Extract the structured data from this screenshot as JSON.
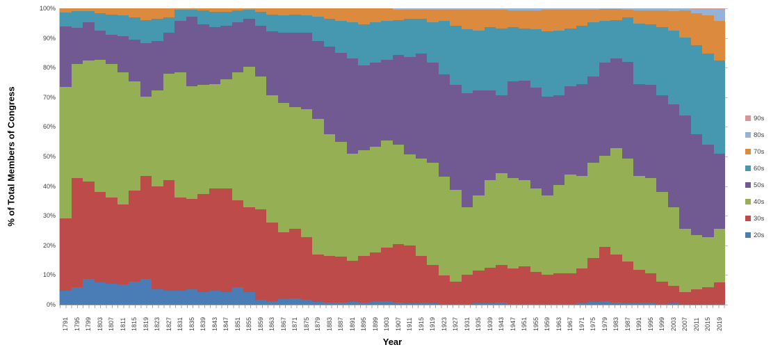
{
  "legend": {
    "position": "right",
    "items": [
      {
        "label": "90s",
        "color": "#D99694"
      },
      {
        "label": "80s",
        "color": "#95B3D7"
      },
      {
        "label": "70s",
        "color": "#DB8A3E"
      },
      {
        "label": "60s",
        "color": "#4698B0"
      },
      {
        "label": "50s",
        "color": "#715A92"
      },
      {
        "label": "40s",
        "color": "#94AF54"
      },
      {
        "label": "30s",
        "color": "#BC4B49"
      },
      {
        "label": "20s",
        "color": "#4A7CB5"
      }
    ]
  },
  "chart_data": {
    "type": "bar",
    "stacking": "percent",
    "title": "",
    "xlabel": "Year",
    "ylabel": "% of Total Members of Congress",
    "ylim": [
      0,
      100
    ],
    "grid": false,
    "legend_position": "right",
    "y_tick_labels": [
      "0%",
      "10%",
      "20%",
      "30%",
      "40%",
      "50%",
      "60%",
      "70%",
      "80%",
      "90%",
      "100%"
    ],
    "categories": [
      1791,
      1795,
      1799,
      1803,
      1807,
      1811,
      1815,
      1819,
      1823,
      1827,
      1831,
      1835,
      1839,
      1843,
      1847,
      1851,
      1855,
      1859,
      1863,
      1867,
      1871,
      1875,
      1879,
      1883,
      1887,
      1891,
      1895,
      1899,
      1903,
      1907,
      1911,
      1915,
      1919,
      1923,
      1927,
      1931,
      1935,
      1939,
      1943,
      1947,
      1951,
      1955,
      1959,
      1963,
      1967,
      1971,
      1975,
      1979,
      1983,
      1987,
      1991,
      1995,
      1999,
      2003,
      2007,
      2011,
      2015,
      2019
    ],
    "series": [
      {
        "name": "20s",
        "color": "#4A7CB5",
        "values": [
          4.8,
          5.9,
          8.6,
          7.5,
          7.1,
          6.7,
          7.8,
          8.6,
          5.1,
          4.7,
          4.7,
          5.1,
          4.3,
          4.7,
          4.3,
          5.9,
          4.3,
          1.6,
          1.2,
          1.8,
          2.0,
          1.6,
          0.9,
          0.7,
          0.7,
          1.0,
          0.8,
          1.2,
          1.2,
          0.8,
          0.4,
          0.4,
          0.4,
          0.2,
          0.2,
          0.2,
          0.4,
          0.4,
          0.6,
          0.2,
          0.2,
          0.2,
          0.2,
          0.2,
          0.2,
          0.4,
          0.9,
          1.2,
          0.8,
          0.4,
          0.4,
          0.5,
          0.2,
          0.5,
          0.1,
          0.1,
          0.1,
          0.2
        ]
      },
      {
        "name": "30s",
        "color": "#BC4B49",
        "values": [
          24.4,
          36.8,
          33.0,
          30.5,
          29.0,
          27.0,
          30.6,
          34.9,
          34.9,
          37.3,
          31.4,
          30.6,
          33.0,
          34.5,
          34.9,
          29.4,
          28.6,
          30.6,
          26.6,
          22.7,
          23.5,
          21.1,
          16.0,
          15.8,
          15.4,
          13.9,
          15.7,
          16.4,
          18.0,
          19.6,
          19.6,
          16.1,
          12.9,
          9.6,
          7.6,
          10.0,
          11.0,
          12.1,
          12.7,
          12.0,
          12.7,
          10.8,
          10.0,
          10.4,
          10.4,
          11.8,
          14.8,
          18.4,
          16.1,
          14.1,
          11.4,
          10.1,
          7.6,
          5.8,
          4.1,
          5.0,
          5.7,
          7.4
        ]
      },
      {
        "name": "40s",
        "color": "#94AF54",
        "values": [
          44.3,
          38.5,
          40.8,
          44.7,
          45.1,
          44.7,
          36.9,
          26.7,
          32.2,
          36.0,
          42.3,
          38.0,
          36.8,
          35.3,
          36.9,
          43.1,
          47.5,
          44.7,
          42.8,
          43.7,
          41.2,
          43.2,
          45.8,
          41.1,
          38.8,
          36.1,
          35.7,
          35.7,
          36.1,
          33.7,
          30.6,
          32.9,
          34.5,
          33.3,
          31.0,
          22.7,
          25.5,
          29.5,
          31.0,
          30.5,
          29.1,
          28.2,
          26.7,
          29.8,
          33.3,
          31.3,
          32.1,
          30.6,
          36.0,
          34.9,
          31.7,
          32.1,
          30.2,
          26.6,
          21.3,
          18.4,
          16.9,
          17.9
        ]
      },
      {
        "name": "50s",
        "color": "#715A92",
        "values": [
          20.5,
          12.3,
          12.9,
          9.8,
          9.8,
          12.2,
          14.1,
          18.0,
          16.8,
          13.8,
          17.3,
          23.6,
          20.4,
          19.2,
          18.0,
          16.9,
          16.1,
          17.2,
          21.6,
          23.6,
          25.2,
          25.9,
          26.3,
          29.5,
          30.2,
          32.1,
          28.6,
          28.3,
          27.4,
          30.2,
          32.9,
          35.3,
          33.8,
          34.5,
          35.3,
          38.5,
          35.3,
          30.2,
          26.4,
          32.6,
          33.7,
          34.1,
          33.3,
          30.2,
          29.8,
          31.0,
          29.1,
          31.4,
          30.2,
          32.6,
          31.0,
          31.4,
          32.6,
          34.6,
          38.4,
          34.1,
          31.4,
          25.5
        ]
      },
      {
        "name": "60s",
        "color": "#4698B0",
        "values": [
          4.5,
          5.5,
          3.7,
          5.9,
          7.0,
          7.0,
          7.5,
          7.9,
          7.5,
          5.1,
          3.9,
          2.3,
          4.7,
          5.1,
          4.7,
          3.9,
          3.1,
          4.7,
          5.8,
          5.8,
          6.1,
          5.8,
          8.3,
          9.4,
          10.6,
          12.2,
          13.7,
          13.7,
          13.0,
          11.8,
          13.0,
          11.8,
          13.7,
          18.1,
          20.0,
          21.5,
          20.3,
          21.5,
          22.6,
          18.4,
          17.6,
          19.6,
          22.0,
          21.9,
          19.6,
          19.6,
          18.4,
          14.1,
          13.0,
          14.9,
          20.4,
          20.4,
          23.1,
          25.0,
          26.3,
          29.9,
          30.6,
          31.4
        ]
      },
      {
        "name": "70s",
        "color": "#DB8A3E",
        "values": [
          1.5,
          1.0,
          1.0,
          1.6,
          2.0,
          2.4,
          3.1,
          3.9,
          3.5,
          3.1,
          0.4,
          0.4,
          0.8,
          1.2,
          1.2,
          0.8,
          0.4,
          1.2,
          2.0,
          2.4,
          2.0,
          2.4,
          2.7,
          3.5,
          4.3,
          4.7,
          5.5,
          4.7,
          4.3,
          3.4,
          3.0,
          3.0,
          4.2,
          3.8,
          5.4,
          6.6,
          7.0,
          5.8,
          6.2,
          5.7,
          6.0,
          6.5,
          7.3,
          7.0,
          6.2,
          5.4,
          4.3,
          4.0,
          3.6,
          2.7,
          4.5,
          4.8,
          5.5,
          6.5,
          9.0,
          10.9,
          12.9,
          13.3
        ]
      },
      {
        "name": "80s",
        "color": "#95B3D7",
        "values": [
          0,
          0,
          0,
          0,
          0,
          0,
          0,
          0,
          0,
          0,
          0,
          0,
          0,
          0,
          0,
          0,
          0,
          0,
          0,
          0,
          0,
          0,
          0,
          0,
          0,
          0,
          0,
          0,
          0,
          0.5,
          0.5,
          0.5,
          0.5,
          0.5,
          0.5,
          0.5,
          0.5,
          0.5,
          0.5,
          0.6,
          0.7,
          0.6,
          0.5,
          0.5,
          0.5,
          0.5,
          0.4,
          0.3,
          0.3,
          0.4,
          0.6,
          0.7,
          0.8,
          1.0,
          0.8,
          1.4,
          2.2,
          3.9
        ]
      },
      {
        "name": "90s",
        "color": "#D99694",
        "values": [
          0,
          0,
          0,
          0,
          0,
          0,
          0,
          0,
          0,
          0,
          0,
          0,
          0,
          0,
          0,
          0,
          0,
          0,
          0,
          0,
          0,
          0,
          0,
          0,
          0,
          0,
          0,
          0,
          0,
          0,
          0,
          0,
          0,
          0,
          0,
          0,
          0,
          0,
          0,
          0,
          0,
          0,
          0,
          0,
          0,
          0,
          0,
          0,
          0,
          0,
          0,
          0,
          0,
          0,
          0,
          0.2,
          0.2,
          0.4
        ]
      }
    ]
  }
}
